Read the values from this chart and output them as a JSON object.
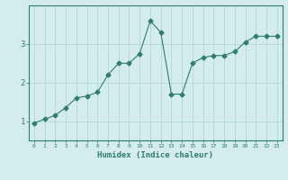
{
  "x": [
    0,
    1,
    2,
    3,
    4,
    5,
    6,
    7,
    8,
    9,
    10,
    11,
    12,
    13,
    14,
    15,
    16,
    17,
    18,
    19,
    20,
    21,
    22,
    23
  ],
  "y": [
    0.95,
    1.05,
    1.15,
    1.35,
    1.6,
    1.65,
    1.75,
    2.2,
    2.5,
    2.5,
    2.75,
    3.6,
    3.3,
    1.7,
    1.7,
    2.5,
    2.65,
    2.7,
    2.7,
    2.8,
    3.05,
    3.2,
    3.2,
    3.2
  ],
  "xlabel": "Humidex (Indice chaleur)",
  "yticks": [
    1,
    2,
    3
  ],
  "ylim": [
    0.5,
    4.0
  ],
  "xlim": [
    -0.5,
    23.5
  ],
  "line_color": "#2e7d6e",
  "marker": "D",
  "markersize": 2.5,
  "bg_color": "#d4ecec",
  "grid_color": "#b0d8d8"
}
